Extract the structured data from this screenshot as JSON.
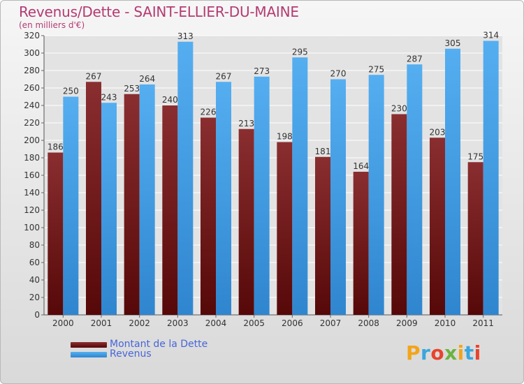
{
  "chart_data": {
    "type": "bar",
    "title": "Revenus/Dette - SAINT-ELLIER-DU-MAINE",
    "subtitle": "(en milliers d'€)",
    "categories": [
      "2000",
      "2001",
      "2002",
      "2003",
      "2004",
      "2005",
      "2006",
      "2007",
      "2008",
      "2009",
      "2010",
      "2011"
    ],
    "series": [
      {
        "name": "Montant de la Dette",
        "color": "#6e1c1e",
        "values": [
          186,
          267,
          253,
          240,
          226,
          213,
          198,
          181,
          164,
          230,
          203,
          175
        ]
      },
      {
        "name": "Revenus",
        "color": "#4aa3e6",
        "values": [
          250,
          243,
          264,
          313,
          267,
          273,
          295,
          270,
          275,
          287,
          305,
          314
        ]
      }
    ],
    "ylim": [
      0,
      320
    ],
    "yticks": [
      0,
      20,
      40,
      60,
      80,
      100,
      120,
      140,
      160,
      180,
      200,
      220,
      240,
      260,
      280,
      300,
      320
    ],
    "grid": true,
    "legend_position": "bottom-left"
  },
  "logo": {
    "text": "Proxiti",
    "colors": [
      "#f2a51a",
      "#3aa6dd",
      "#e8442d",
      "#6cb33f",
      "#f2a51a",
      "#3aa6dd",
      "#e8442d"
    ]
  }
}
